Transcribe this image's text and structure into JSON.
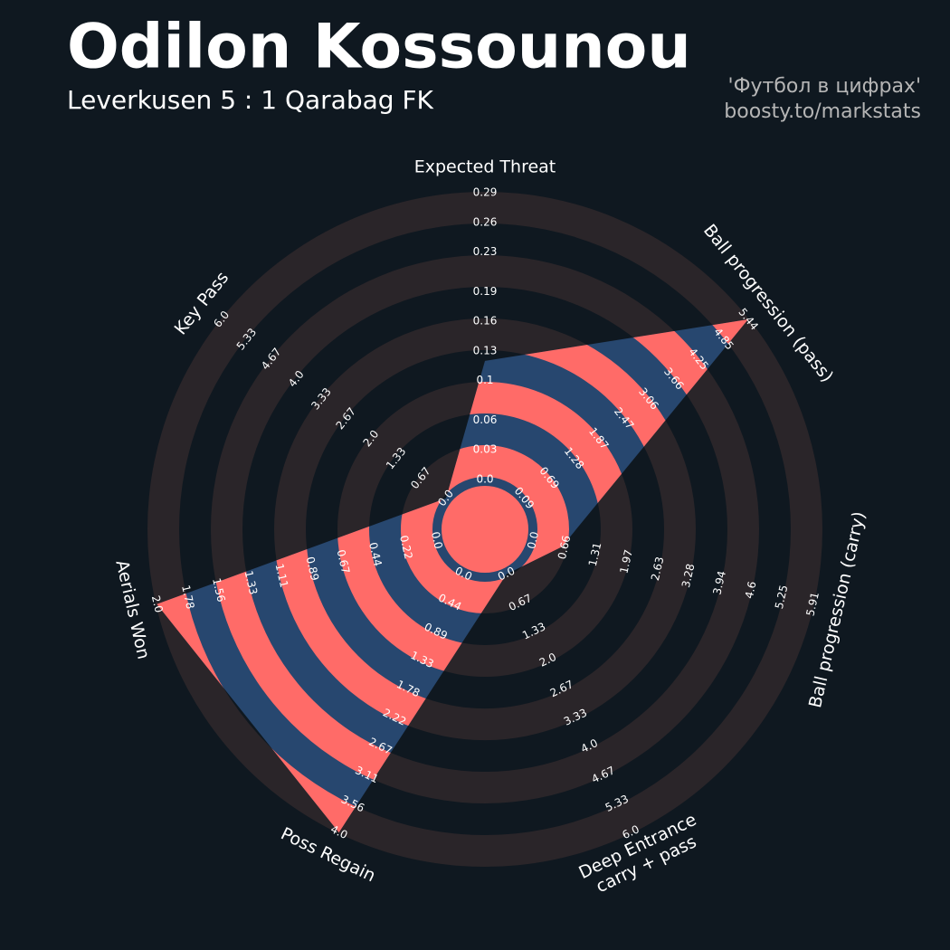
{
  "chart_data": {
    "type": "radar",
    "title": "Odilon Kossounou",
    "subtitle": "Leverkusen 5 : 1 Qarabag FK",
    "credits": [
      "'Футбол в цифрах'",
      "boosty.to/markstats"
    ],
    "categories": [
      "Expected Threat",
      "Ball progression (pass)",
      "Ball progression (carry)",
      "Deep Entrance\ncarry + pass",
      "Poss Regain",
      "Aerials Won",
      "Key Pass"
    ],
    "values": [
      0.12,
      5.44,
      0.6,
      0,
      4.0,
      2.0,
      0
    ],
    "color": "#27476f",
    "ring_color": "#2a2529",
    "highlight_color": "#ff6b68",
    "rlims": [
      [
        0,
        0.29
      ],
      [
        0.09,
        5.44
      ],
      [
        0,
        5.91
      ],
      [
        0,
        6
      ],
      [
        0,
        4
      ],
      [
        0,
        2
      ],
      [
        0,
        6
      ]
    ],
    "rticks": [
      [
        {
          "value": 0,
          "label": "0.0"
        },
        0.03,
        0.06,
        0.1,
        0.13,
        0.16,
        0.19,
        0.23,
        0.26,
        0.29
      ],
      [
        0.09,
        0.69,
        1.28,
        1.87,
        2.47,
        3.06,
        3.66,
        4.25,
        4.85,
        5.44
      ],
      [
        {
          "value": 0,
          "label": "0.0"
        },
        0.66,
        1.31,
        1.97,
        2.63,
        3.28,
        3.94,
        4.6,
        5.25,
        5.91
      ],
      [
        {
          "value": 0,
          "label": "0.0"
        },
        0.67,
        1.33,
        {
          "value": 2,
          "label": "2.0"
        },
        2.67,
        3.33,
        {
          "value": 4,
          "label": "4.0"
        },
        4.67,
        5.33,
        {
          "value": 6,
          "label": "6.0"
        }
      ],
      [
        {
          "value": 0,
          "label": "0.0"
        },
        0.44,
        0.89,
        1.33,
        1.78,
        2.22,
        2.67,
        3.11,
        3.56,
        {
          "value": 4,
          "label": "4.0"
        }
      ],
      [
        {
          "value": 0,
          "label": "0.0"
        },
        0.22,
        0.44,
        0.67,
        0.89,
        1.11,
        1.33,
        1.56,
        1.78,
        {
          "value": 2,
          "label": "2.0"
        }
      ],
      [
        {
          "value": 0,
          "label": "0.0"
        },
        0.67,
        1.33,
        {
          "value": 2,
          "label": "2.0"
        },
        2.67,
        3.33,
        {
          "value": 4,
          "label": "4.0"
        },
        4.67,
        5.33,
        {
          "value": 6,
          "label": "6.0"
        }
      ]
    ]
  }
}
